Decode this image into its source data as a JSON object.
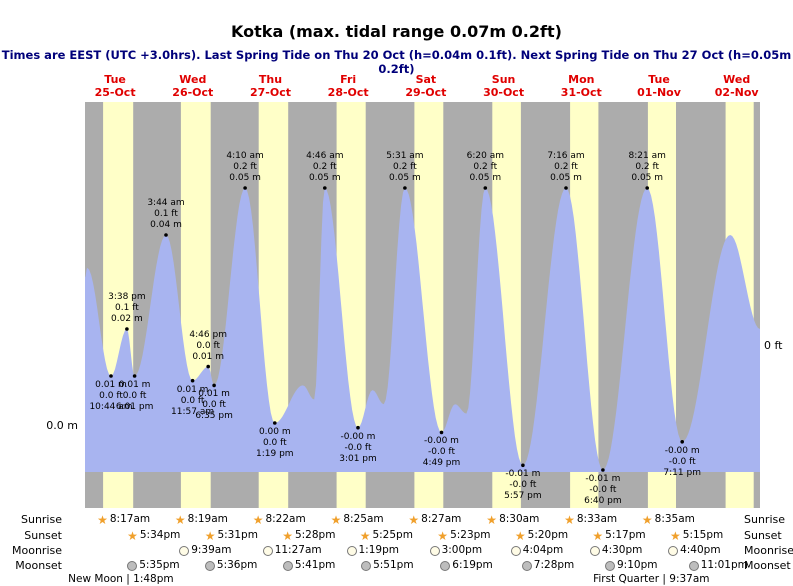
{
  "title": "Kotka (max. tidal range 0.07m 0.2ft)",
  "subtitle": "Times are EEST (UTC +3.0hrs). Last Spring Tide on Thu 20 Oct (h=0.04m 0.1ft). Next Spring Tide on Thu 27 Oct (h=0.05m 0.2ft)",
  "axes": {
    "left_label": "0.0 m",
    "right_label": "0 ft"
  },
  "colors": {
    "day_band": "#ffffc8",
    "night_band": "#acacac",
    "tide_fill": "#a8b4f0",
    "day_label": "#e00000",
    "subtitle": "#00007a",
    "annotation": "#000000"
  },
  "days": [
    {
      "weekday": "Tue",
      "date": "25-Oct"
    },
    {
      "weekday": "Wed",
      "date": "26-Oct"
    },
    {
      "weekday": "Thu",
      "date": "27-Oct"
    },
    {
      "weekday": "Fri",
      "date": "28-Oct"
    },
    {
      "weekday": "Sat",
      "date": "29-Oct"
    },
    {
      "weekday": "Sun",
      "date": "30-Oct"
    },
    {
      "weekday": "Mon",
      "date": "31-Oct"
    },
    {
      "weekday": "Tue",
      "date": "01-Nov"
    },
    {
      "weekday": "Wed",
      "date": "02-Nov"
    }
  ],
  "chart_data": {
    "type": "area",
    "title": "Kotka tide height",
    "x_unit": "hours since 00:00 Tue 25-Oct",
    "x_range": [
      2.7,
      211.2
    ],
    "y_unit": "m",
    "y_range": [
      -0.013,
      0.065
    ],
    "extremes": [
      {
        "kind": "low",
        "day": 0,
        "time": "10:44 am",
        "ft_label": "0.0 ft",
        "m_label": "0.01 m",
        "value_m": 0.01
      },
      {
        "kind": "high",
        "day": 0,
        "time": "3:38 pm",
        "ft_label": "0.1 ft",
        "m_label": "0.02 m",
        "value_m": 0.02
      },
      {
        "kind": "low",
        "day": 0,
        "time": "6:01 pm",
        "ft_label": "0.0 ft",
        "m_label": "0.01 m",
        "value_m": 0.01
      },
      {
        "kind": "high",
        "day": 1,
        "time": "3:44 am",
        "ft_label": "0.1 ft",
        "m_label": "0.04 m",
        "value_m": 0.04
      },
      {
        "kind": "low",
        "day": 1,
        "time": "11:57 am",
        "ft_label": "0.0 ft",
        "m_label": "0.01 m",
        "value_m": 0.009
      },
      {
        "kind": "high",
        "day": 1,
        "time": "4:46 pm",
        "ft_label": "0.0 ft",
        "m_label": "0.01 m",
        "value_m": 0.012
      },
      {
        "kind": "low",
        "day": 1,
        "time": "6:35 pm",
        "ft_label": "0.0 ft",
        "m_label": "0.01 m",
        "value_m": 0.008
      },
      {
        "kind": "high",
        "day": 2,
        "time": "4:10 am",
        "ft_label": "0.2 ft",
        "m_label": "0.05 m",
        "value_m": 0.05
      },
      {
        "kind": "low",
        "day": 2,
        "time": "1:19 pm",
        "ft_label": "0.0 ft",
        "m_label": "0.00 m",
        "value_m": 0.0
      },
      {
        "kind": "high",
        "day": 3,
        "time": "4:46 am",
        "ft_label": "0.2 ft",
        "m_label": "0.05 m",
        "value_m": 0.05
      },
      {
        "kind": "low",
        "day": 3,
        "time": "3:01 pm",
        "ft_label": "-0.0 ft",
        "m_label": "-0.00 m",
        "value_m": -0.001
      },
      {
        "kind": "high",
        "day": 4,
        "time": "5:31 am",
        "ft_label": "0.2 ft",
        "m_label": "0.05 m",
        "value_m": 0.05
      },
      {
        "kind": "low",
        "day": 4,
        "time": "4:49 pm",
        "ft_label": "-0.0 ft",
        "m_label": "-0.00 m",
        "value_m": -0.002
      },
      {
        "kind": "high",
        "day": 5,
        "time": "6:20 am",
        "ft_label": "0.2 ft",
        "m_label": "0.05 m",
        "value_m": 0.05
      },
      {
        "kind": "low",
        "day": 5,
        "time": "5:57 pm",
        "ft_label": "-0.0 ft",
        "m_label": "-0.01 m",
        "value_m": -0.009
      },
      {
        "kind": "high",
        "day": 6,
        "time": "7:16 am",
        "ft_label": "0.2 ft",
        "m_label": "0.05 m",
        "value_m": 0.05
      },
      {
        "kind": "low",
        "day": 6,
        "time": "6:40 pm",
        "ft_label": "-0.0 ft",
        "m_label": "-0.01 m",
        "value_m": -0.01
      },
      {
        "kind": "high",
        "day": 7,
        "time": "8:21 am",
        "ft_label": "0.2 ft",
        "m_label": "0.05 m",
        "value_m": 0.05
      },
      {
        "kind": "low",
        "day": 7,
        "time": "7:11 pm",
        "ft_label": "-0.0 ft",
        "m_label": "-0.00 m",
        "value_m": -0.004
      }
    ],
    "curve": [
      [
        2.7,
        0.031
      ],
      [
        3.4,
        0.033
      ],
      [
        10.73,
        0.01
      ],
      [
        15.63,
        0.02
      ],
      [
        18.02,
        0.01
      ],
      [
        27.73,
        0.04
      ],
      [
        35.95,
        0.009
      ],
      [
        40.77,
        0.012
      ],
      [
        42.58,
        0.008
      ],
      [
        52.17,
        0.05
      ],
      [
        61.32,
        0.0
      ],
      [
        70.0,
        0.008
      ],
      [
        73.5,
        0.005
      ],
      [
        76.77,
        0.05
      ],
      [
        87.02,
        -0.001
      ],
      [
        91.5,
        0.007
      ],
      [
        95.0,
        0.004
      ],
      [
        101.52,
        0.05
      ],
      [
        112.82,
        -0.002
      ],
      [
        117.0,
        0.004
      ],
      [
        120.5,
        0.002
      ],
      [
        126.33,
        0.05
      ],
      [
        137.95,
        -0.009
      ],
      [
        151.27,
        0.05
      ],
      [
        162.67,
        -0.01
      ],
      [
        176.35,
        0.05
      ],
      [
        187.18,
        -0.004
      ],
      [
        202.0,
        0.04
      ],
      [
        211.2,
        0.02
      ]
    ]
  },
  "astro": {
    "rows": [
      {
        "key": "sunrise",
        "label": "Sunrise",
        "icon": "star",
        "events": [
          {
            "day": 0,
            "time": "8:17am"
          },
          {
            "day": 1,
            "time": "8:19am"
          },
          {
            "day": 2,
            "time": "8:22am"
          },
          {
            "day": 3,
            "time": "8:25am"
          },
          {
            "day": 4,
            "time": "8:27am"
          },
          {
            "day": 5,
            "time": "8:30am"
          },
          {
            "day": 6,
            "time": "8:33am"
          },
          {
            "day": 7,
            "time": "8:35am"
          }
        ]
      },
      {
        "key": "sunset",
        "label": "Sunset",
        "icon": "star",
        "events": [
          {
            "day": 0,
            "time": "5:34pm"
          },
          {
            "day": 1,
            "time": "5:31pm"
          },
          {
            "day": 2,
            "time": "5:28pm"
          },
          {
            "day": 3,
            "time": "5:25pm"
          },
          {
            "day": 4,
            "time": "5:23pm"
          },
          {
            "day": 5,
            "time": "5:20pm"
          },
          {
            "day": 6,
            "time": "5:17pm"
          },
          {
            "day": 7,
            "time": "5:15pm"
          }
        ]
      },
      {
        "key": "moonrise",
        "label": "Moonrise",
        "icon": "moon",
        "events": [
          {
            "day": 1,
            "time": "9:39am"
          },
          {
            "day": 2,
            "time": "11:27am"
          },
          {
            "day": 3,
            "time": "1:19pm"
          },
          {
            "day": 4,
            "time": "3:00pm"
          },
          {
            "day": 5,
            "time": "4:04pm"
          },
          {
            "day": 6,
            "time": "4:30pm"
          },
          {
            "day": 7,
            "time": "4:40pm"
          }
        ]
      },
      {
        "key": "moonset",
        "label": "Moonset",
        "icon": "moon",
        "events": [
          {
            "day": 0,
            "time": "5:35pm"
          },
          {
            "day": 1,
            "time": "5:36pm"
          },
          {
            "day": 2,
            "time": "5:41pm"
          },
          {
            "day": 3,
            "time": "5:51pm"
          },
          {
            "day": 4,
            "time": "6:19pm"
          },
          {
            "day": 5,
            "time": "7:28pm"
          },
          {
            "day": 6,
            "time": "9:10pm"
          },
          {
            "day": 7,
            "time": "11:01pm"
          }
        ]
      }
    ],
    "phases": [
      {
        "text": "New Moon | 1:48pm",
        "day": 0,
        "time": "1:48pm"
      },
      {
        "text": "First Quarter | 9:37am",
        "day": 7,
        "time": "9:37am"
      }
    ]
  }
}
